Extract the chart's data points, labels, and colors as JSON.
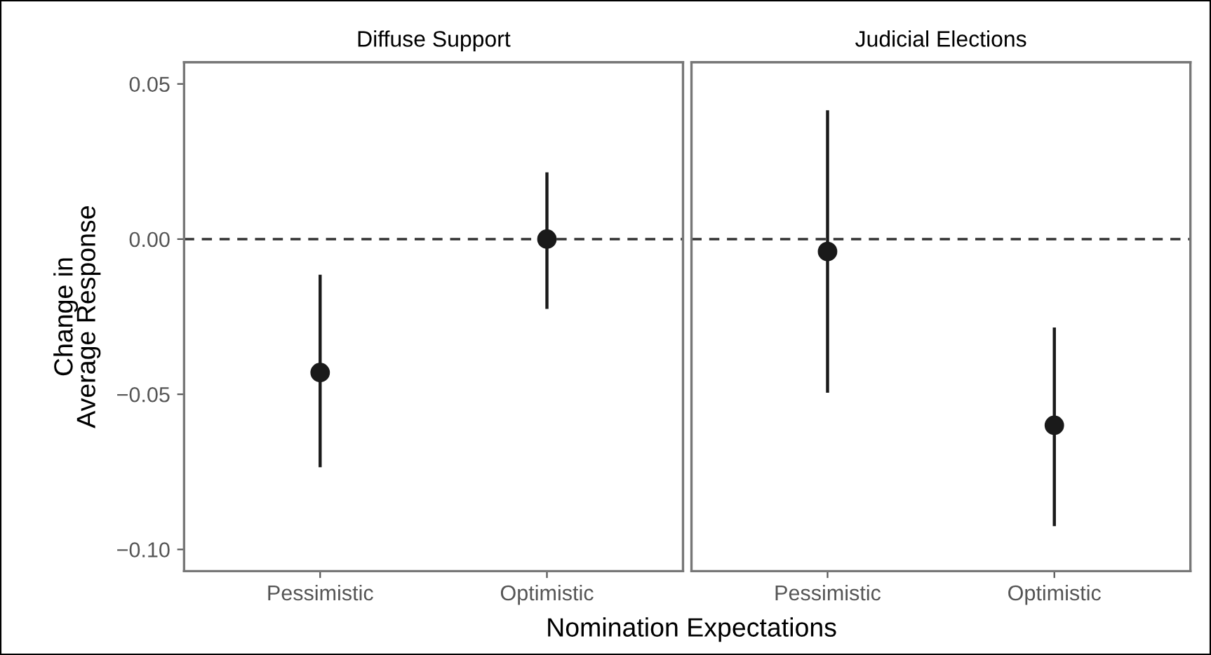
{
  "chart_data": [
    {
      "type": "scatter",
      "title": "Diffuse Support",
      "xlabel": "Nomination Expectations",
      "ylabel": "Change in\nAverage Response",
      "categories": [
        "Pessimistic",
        "Optimistic"
      ],
      "values": [
        -0.043,
        0.0
      ],
      "errors": [
        [
          -0.073,
          -0.012
        ],
        [
          -0.022,
          0.021
        ]
      ],
      "color": "#1a1a1a",
      "marker": "circle",
      "ylim": [
        -0.107,
        0.057
      ],
      "yticks": [
        0.05,
        {
          "value": 0.0,
          "label": "0.00"
        },
        {
          "value": -0.05,
          "label": "−0.05"
        },
        {
          "value": -0.1,
          "label": "−0.10"
        }
      ],
      "ref_lines": [
        {
          "axis": "y",
          "value": 0,
          "line_style": "dashed"
        }
      ],
      "grid": false
    },
    {
      "type": "scatter",
      "title": "Judicial Elections",
      "categories": [
        "Pessimistic",
        "Optimistic"
      ],
      "values": [
        -0.004,
        -0.06
      ],
      "errors": [
        [
          -0.049,
          0.041
        ],
        [
          -0.092,
          -0.029
        ]
      ],
      "color": "#1a1a1a",
      "marker": "circle",
      "ylim": [
        -0.107,
        0.057
      ],
      "tick_labels": "x",
      "ref_lines": [
        {
          "axis": "y",
          "value": 0,
          "line_style": "dashed"
        }
      ],
      "grid": false
    }
  ]
}
